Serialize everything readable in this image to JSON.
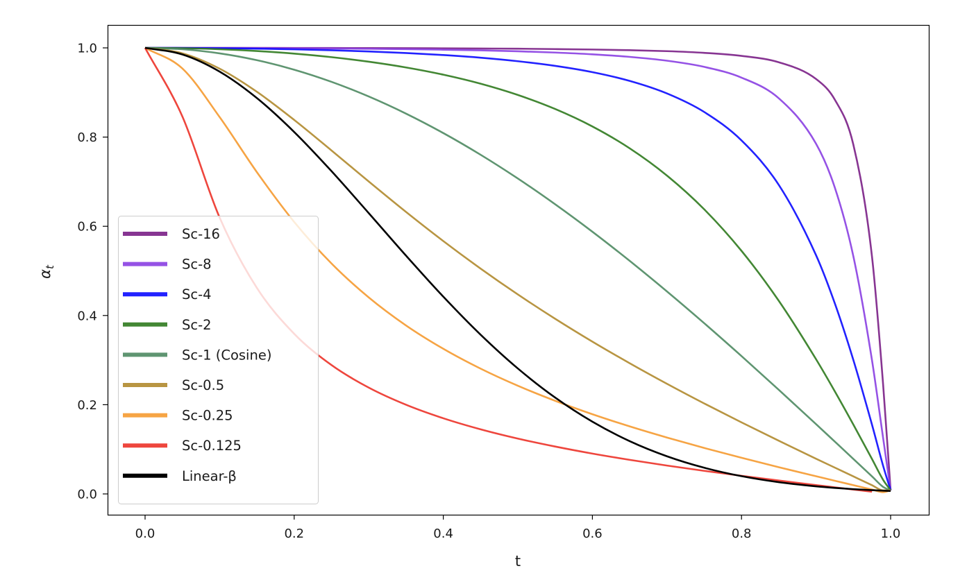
{
  "chart_data": {
    "type": "line",
    "title": "",
    "xlabel": "t",
    "ylabel": "α_t",
    "ylabel_main": "α",
    "ylabel_sub": "t",
    "xlim": [
      -0.05,
      1.05
    ],
    "ylim": [
      -0.05,
      1.05
    ],
    "xticks": [
      "0.0",
      "0.2",
      "0.4",
      "0.6",
      "0.8",
      "1.0"
    ],
    "yticks": [
      "0.0",
      "0.2",
      "0.4",
      "0.6",
      "0.8",
      "1.0"
    ],
    "grid": false,
    "legend_position": "lower-left",
    "x": [
      0,
      0.05,
      0.1,
      0.15,
      0.2,
      0.25,
      0.3,
      0.35,
      0.4,
      0.45,
      0.5,
      0.55,
      0.6,
      0.65,
      0.7,
      0.75,
      0.8,
      0.85,
      0.9,
      0.925,
      0.95,
      0.975,
      0.99,
      1.0
    ],
    "series": [
      {
        "name": "Sc-16",
        "color": "#7a1f86",
        "values": [
          1,
          1.0,
          1.0,
          0.9999,
          0.9998,
          0.9997,
          0.9995,
          0.9993,
          0.999,
          0.9986,
          0.9981,
          0.9973,
          0.9963,
          0.9948,
          0.9926,
          0.9888,
          0.982,
          0.9677,
          0.9302,
          0.8843,
          0.7831,
          0.5322,
          0.2438,
          0.008
        ]
      },
      {
        "name": "Sc-8",
        "color": "#8a3fe2",
        "values": [
          1,
          1.0,
          0.9998,
          0.9995,
          0.9992,
          0.9987,
          0.998,
          0.9971,
          0.9959,
          0.9944,
          0.9923,
          0.9895,
          0.9855,
          0.9798,
          0.9712,
          0.9574,
          0.9333,
          0.887,
          0.785,
          0.6876,
          0.5328,
          0.2999,
          0.1247,
          0.008
        ]
      },
      {
        "name": "Sc-4",
        "color": "#0a0aff",
        "values": [
          1,
          0.9998,
          0.9992,
          0.9982,
          0.9967,
          0.9947,
          0.992,
          0.9885,
          0.9839,
          0.978,
          0.9701,
          0.9597,
          0.9456,
          0.9259,
          0.8978,
          0.8562,
          0.7925,
          0.6927,
          0.5351,
          0.4279,
          0.3003,
          0.1553,
          0.0627,
          0.008
        ]
      },
      {
        "name": "Sc-2",
        "color": "#2f7a1e",
        "values": [
          1,
          0.9992,
          0.9969,
          0.9929,
          0.9871,
          0.9792,
          0.969,
          0.9561,
          0.9399,
          0.9197,
          0.8944,
          0.863,
          0.8238,
          0.7748,
          0.7137,
          0.638,
          0.5449,
          0.4329,
          0.3019,
          0.2304,
          0.1555,
          0.0783,
          0.0314,
          0.008
        ]
      },
      {
        "name": "Sc-1 (Cosine)",
        "color": "#4e8a62",
        "values": [
          1,
          0.9969,
          0.9877,
          0.9724,
          0.9511,
          0.9239,
          0.891,
          0.8526,
          0.809,
          0.7604,
          0.7071,
          0.6494,
          0.5878,
          0.5225,
          0.454,
          0.3827,
          0.309,
          0.2334,
          0.1564,
          0.1175,
          0.0785,
          0.0393,
          0.0157,
          0.008
        ]
      },
      {
        "name": "Sc-0.5",
        "color": "#b08a2e",
        "values": [
          1,
          0.9878,
          0.9533,
          0.9015,
          0.8385,
          0.7701,
          0.7004,
          0.6322,
          0.5669,
          0.5052,
          0.4472,
          0.3927,
          0.3414,
          0.293,
          0.2469,
          0.2028,
          0.1604,
          0.1192,
          0.0789,
          0.0591,
          0.0393,
          0.0196,
          0.0079,
          0.008
        ]
      },
      {
        "name": "Sc-0.25",
        "color": "#f59a30",
        "values": [
          1,
          0.9538,
          0.8448,
          0.7213,
          0.6098,
          0.5167,
          0.4405,
          0.3777,
          0.3254,
          0.2809,
          0.2425,
          0.2088,
          0.1787,
          0.1514,
          0.1264,
          0.103,
          0.081,
          0.0599,
          0.0396,
          0.0296,
          0.0197,
          0.0098,
          0.0039,
          0.008
        ]
      },
      {
        "name": "Sc-0.125",
        "color": "#ec3228",
        "values": [
          1,
          0.8462,
          0.6195,
          0.4618,
          0.359,
          0.2889,
          0.2383,
          0.1999,
          0.1696,
          0.1448,
          0.124,
          0.1062,
          0.0904,
          0.0764,
          0.0636,
          0.0517,
          0.0406,
          0.03,
          0.0198,
          0.0148,
          0.0098,
          0.0049,
          null,
          null
        ]
      },
      {
        "name": "Linear-β",
        "color": "#000000",
        "values": [
          1,
          0.9852,
          0.9467,
          0.8874,
          0.8114,
          0.7237,
          0.6295,
          0.5342,
          0.4422,
          0.357,
          0.2812,
          0.216,
          0.1619,
          0.1183,
          0.0844,
          0.0587,
          0.0398,
          0.0263,
          0.017,
          0.0135,
          0.0107,
          0.0084,
          0.0073,
          0.0066
        ]
      }
    ]
  }
}
